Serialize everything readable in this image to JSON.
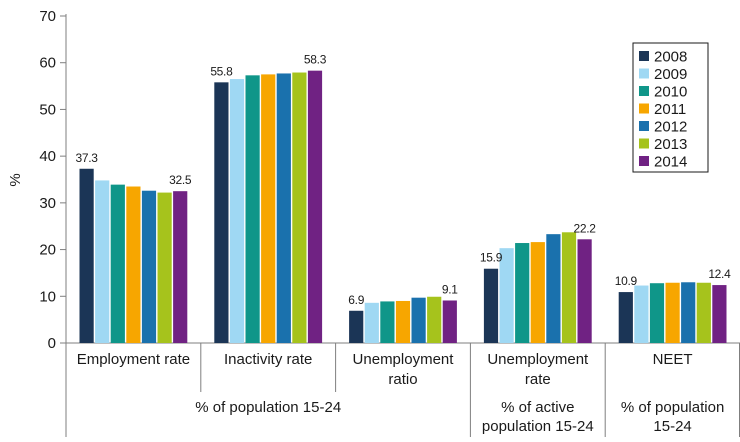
{
  "chart_data": {
    "type": "bar",
    "ylabel": "%",
    "ylim": [
      0,
      70
    ],
    "yticks": [
      0,
      10,
      20,
      30,
      40,
      50,
      60,
      70
    ],
    "grid": false,
    "legend_position": "top-right",
    "categories": [
      "Employment rate",
      "Inactivity rate",
      "Unemployment ratio",
      "Unemployment rate",
      "NEET"
    ],
    "category_label_lines": [
      [
        "Employment rate"
      ],
      [
        "Inactivity rate"
      ],
      [
        "Unemployment",
        "ratio"
      ],
      [
        "Unemployment",
        "rate"
      ],
      [
        "NEET"
      ]
    ],
    "groups": [
      {
        "label_lines": [
          "% of population 15-24"
        ],
        "categories": [
          0,
          1,
          2
        ]
      },
      {
        "label_lines": [
          "% of active",
          "population 15-24"
        ],
        "categories": [
          3
        ]
      },
      {
        "label_lines": [
          "% of population",
          "15-24"
        ],
        "categories": [
          4
        ]
      }
    ],
    "series": [
      {
        "name": "2008",
        "color": "#1b3556",
        "values": [
          37.3,
          55.8,
          6.9,
          15.9,
          10.9
        ]
      },
      {
        "name": "2009",
        "color": "#9fd8f3",
        "values": [
          34.8,
          56.5,
          8.6,
          20.3,
          12.3
        ]
      },
      {
        "name": "2010",
        "color": "#0f9689",
        "values": [
          33.9,
          57.3,
          8.9,
          21.4,
          12.8
        ]
      },
      {
        "name": "2011",
        "color": "#f7a600",
        "values": [
          33.5,
          57.5,
          9.0,
          21.6,
          12.9
        ]
      },
      {
        "name": "2012",
        "color": "#1a71ad",
        "values": [
          32.6,
          57.7,
          9.7,
          23.3,
          13.0
        ]
      },
      {
        "name": "2013",
        "color": "#a6c31c",
        "values": [
          32.2,
          57.9,
          9.9,
          23.7,
          12.9
        ]
      },
      {
        "name": "2014",
        "color": "#702283",
        "values": [
          32.5,
          58.3,
          9.1,
          22.2,
          12.4
        ]
      }
    ],
    "data_labels": [
      {
        "category": 0,
        "series": 0,
        "text": "37.3"
      },
      {
        "category": 0,
        "series": 6,
        "text": "32.5"
      },
      {
        "category": 1,
        "series": 0,
        "text": "55.8"
      },
      {
        "category": 1,
        "series": 6,
        "text": "58.3"
      },
      {
        "category": 2,
        "series": 0,
        "text": "6.9"
      },
      {
        "category": 2,
        "series": 6,
        "text": "9.1"
      },
      {
        "category": 3,
        "series": 0,
        "text": "15.9"
      },
      {
        "category": 3,
        "series": 6,
        "text": "22.2"
      },
      {
        "category": 4,
        "series": 0,
        "text": "10.9"
      },
      {
        "category": 4,
        "series": 6,
        "text": "12.4"
      }
    ]
  }
}
